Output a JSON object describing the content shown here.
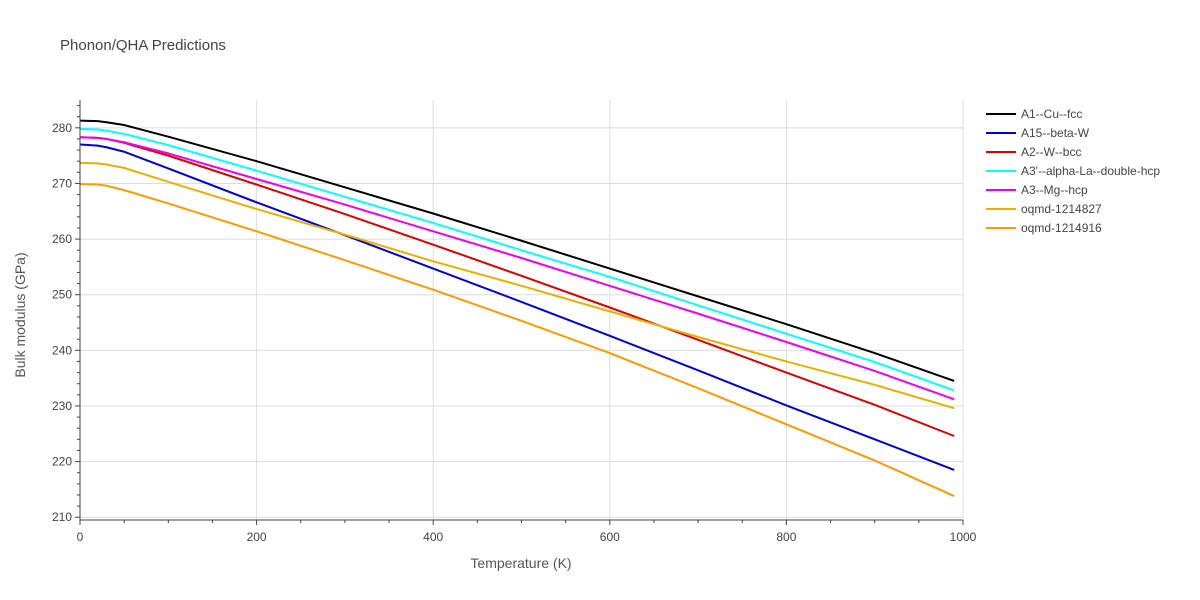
{
  "chart_data": {
    "type": "line",
    "title": "Phonon/QHA Predictions",
    "xlabel": "Temperature (K)",
    "ylabel": "Bulk modulus (GPa)",
    "xlim": [
      0,
      1000
    ],
    "ylim": [
      209.5,
      285
    ],
    "xticks": [
      0,
      200,
      400,
      600,
      800,
      1000
    ],
    "yticks": [
      210,
      220,
      230,
      240,
      250,
      260,
      270,
      280
    ],
    "grid": true,
    "legend_position": "right",
    "series": [
      {
        "name": "A1--Cu--fcc",
        "color": "#000000",
        "x": [
          0,
          20,
          30,
          50,
          100,
          200,
          300,
          400,
          500,
          600,
          700,
          800,
          900,
          990
        ],
        "y": [
          281.3,
          281.2,
          281.0,
          280.5,
          278.4,
          274.0,
          269.3,
          264.6,
          259.7,
          254.7,
          249.7,
          244.7,
          239.5,
          234.5
        ]
      },
      {
        "name": "A15--beta-W",
        "color": "#0000dd",
        "x": [
          0,
          20,
          30,
          50,
          100,
          200,
          300,
          400,
          500,
          600,
          700,
          800,
          900,
          990
        ],
        "y": [
          277.0,
          276.8,
          276.5,
          275.7,
          272.7,
          266.6,
          260.7,
          254.7,
          248.7,
          242.6,
          236.4,
          230.1,
          224.0,
          218.5
        ]
      },
      {
        "name": "A2--W--bcc",
        "color": "#dd0000",
        "x": [
          0,
          20,
          30,
          50,
          100,
          200,
          300,
          400,
          500,
          600,
          700,
          800,
          900,
          990
        ],
        "y": [
          278.3,
          278.2,
          278.0,
          277.3,
          275.0,
          269.8,
          264.5,
          259.0,
          253.4,
          247.7,
          241.9,
          236.0,
          230.2,
          224.6
        ]
      },
      {
        "name": "A3'--alpha-La--double-hcp",
        "color": "#00ffff",
        "x": [
          0,
          20,
          30,
          50,
          100,
          200,
          300,
          400,
          500,
          600,
          700,
          800,
          900,
          990
        ],
        "y": [
          279.8,
          279.7,
          279.5,
          278.9,
          276.9,
          272.3,
          267.6,
          262.9,
          258.0,
          253.2,
          248.1,
          243.0,
          237.9,
          232.8
        ]
      },
      {
        "name": "A3--Mg--hcp",
        "color": "#ee00ee",
        "x": [
          0,
          20,
          30,
          50,
          100,
          200,
          300,
          400,
          500,
          600,
          700,
          800,
          900,
          990
        ],
        "y": [
          278.3,
          278.2,
          278.0,
          277.4,
          275.4,
          270.8,
          266.2,
          261.4,
          256.6,
          251.6,
          246.6,
          241.5,
          236.3,
          231.2
        ]
      },
      {
        "name": "oqmd-1214827",
        "color": "#e8b000",
        "x": [
          0,
          20,
          30,
          50,
          100,
          200,
          300,
          400,
          500,
          600,
          700,
          800,
          900,
          990
        ],
        "y": [
          273.7,
          273.6,
          273.4,
          272.8,
          270.3,
          265.4,
          260.8,
          256.0,
          251.6,
          247.0,
          242.4,
          238.0,
          233.8,
          229.6
        ]
      },
      {
        "name": "oqmd-1214916",
        "color": "#ff9900",
        "x": [
          0,
          20,
          30,
          50,
          100,
          200,
          300,
          400,
          500,
          600,
          700,
          800,
          900,
          990
        ],
        "y": [
          269.9,
          269.8,
          269.6,
          268.8,
          266.4,
          261.4,
          256.2,
          250.9,
          245.3,
          239.5,
          233.2,
          226.7,
          220.2,
          213.8
        ]
      }
    ]
  }
}
